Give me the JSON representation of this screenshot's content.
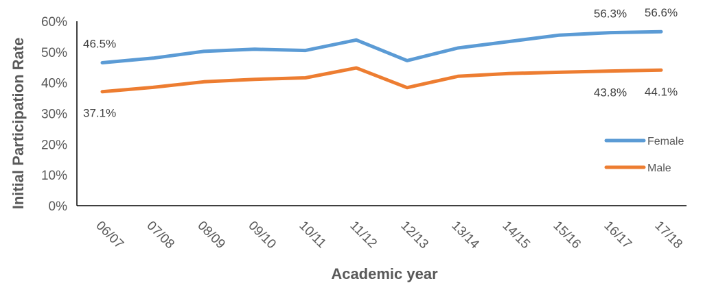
{
  "chart_data": {
    "type": "line",
    "title": "",
    "xlabel": "Academic year",
    "ylabel": "Initial Participation Rate",
    "ylim": [
      0,
      60
    ],
    "y_ticks": [
      "0%",
      "10%",
      "20%",
      "30%",
      "40%",
      "50%",
      "60%"
    ],
    "categories": [
      "06/07",
      "07/08",
      "08/09",
      "09/10",
      "10/11",
      "11/12",
      "12/13",
      "13/14",
      "14/15",
      "15/16",
      "16/17",
      "17/18"
    ],
    "series": [
      {
        "name": "Female",
        "color": "#5B9BD5",
        "values": [
          46.5,
          48.0,
          50.2,
          50.9,
          50.5,
          53.9,
          47.2,
          51.3,
          53.4,
          55.5,
          56.3,
          56.6
        ],
        "labels": [
          {
            "index": 0,
            "text": "46.5%"
          },
          {
            "index": 10,
            "text": "56.3%"
          },
          {
            "index": 11,
            "text": "56.6%"
          }
        ]
      },
      {
        "name": "Male",
        "color": "#ED7D31",
        "values": [
          37.1,
          38.5,
          40.3,
          41.1,
          41.6,
          44.8,
          38.4,
          42.1,
          43.0,
          43.4,
          43.8,
          44.1
        ],
        "labels": [
          {
            "index": 0,
            "text": "37.1%"
          },
          {
            "index": 10,
            "text": "43.8%"
          },
          {
            "index": 11,
            "text": "44.1%"
          }
        ]
      }
    ],
    "legend": "right",
    "grid": false
  }
}
